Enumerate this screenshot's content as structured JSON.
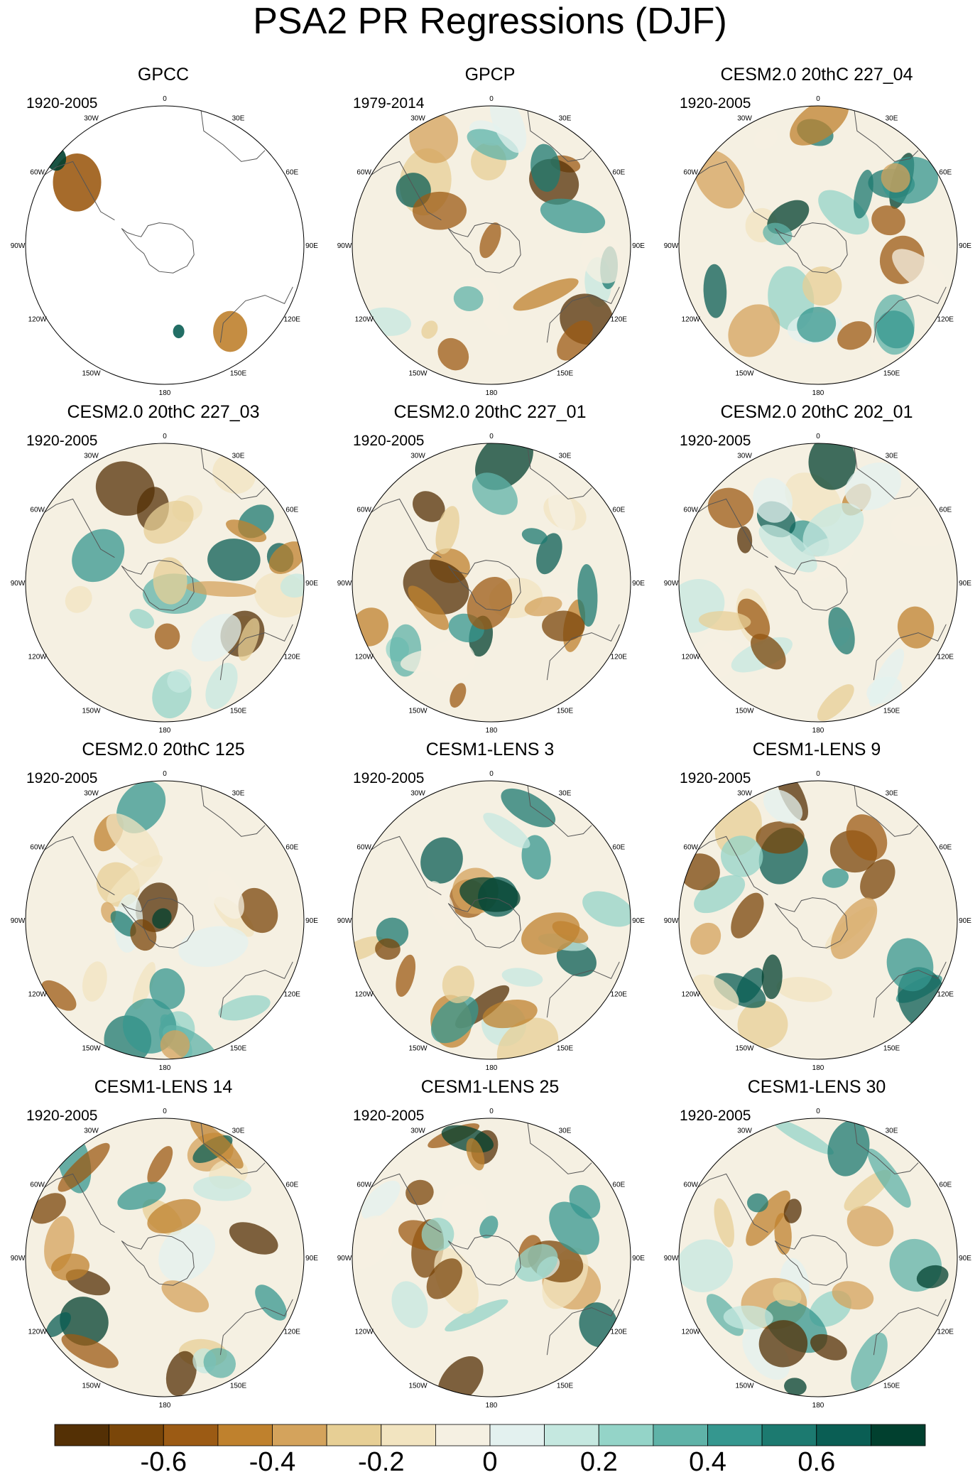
{
  "figure": {
    "title": "PSA2 PR Regressions (DJF)"
  },
  "longitude_labels": [
    "0",
    "30E",
    "60E",
    "90E",
    "120E",
    "150E",
    "180",
    "150W",
    "120W",
    "90W",
    "60W",
    "30W"
  ],
  "panels": [
    {
      "title": "GPCC",
      "period": "1920-2005"
    },
    {
      "title": "GPCP",
      "period": "1979-2014"
    },
    {
      "title": "CESM2.0 20thC 227_04",
      "period": "1920-2005"
    },
    {
      "title": "CESM2.0 20thC 227_03",
      "period": "1920-2005"
    },
    {
      "title": "CESM2.0 20thC 227_01",
      "period": "1920-2005"
    },
    {
      "title": "CESM2.0 20thC 202_01",
      "period": "1920-2005"
    },
    {
      "title": "CESM2.0 20thC 125",
      "period": "1920-2005"
    },
    {
      "title": "CESM1-LENS 3",
      "period": "1920-2005"
    },
    {
      "title": "CESM1-LENS 9",
      "period": "1920-2005"
    },
    {
      "title": "CESM1-LENS 14",
      "period": "1920-2005"
    },
    {
      "title": "CESM1-LENS 25",
      "period": "1920-2005"
    },
    {
      "title": "CESM1-LENS 30",
      "period": "1920-2005"
    }
  ],
  "colorbar": {
    "colors": [
      "#543005",
      "#7a4609",
      "#9c5b14",
      "#bf812d",
      "#d4a35c",
      "#e7cf95",
      "#f2e4c0",
      "#f5f0e2",
      "#e3f1ef",
      "#c5e8e0",
      "#94d4c8",
      "#5fb3a8",
      "#35978f",
      "#1c7a70",
      "#0a5e54",
      "#01402f"
    ],
    "labels": [
      "-0.6",
      "-0.4",
      "-0.2",
      "0",
      "0.2",
      "0.4",
      "0.6"
    ]
  }
}
